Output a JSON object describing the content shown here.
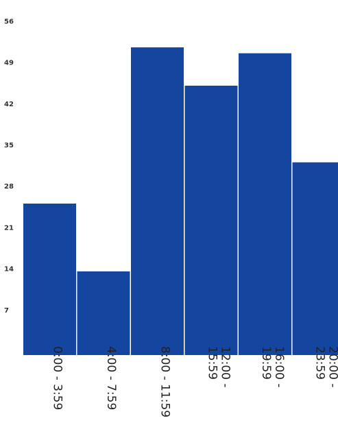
{
  "chart_data": {
    "type": "bar",
    "categories": [
      "0:00 - 3:59",
      "4:00 - 7:59",
      "8:00 - 11:59",
      "12:00 - 15:59",
      "16:00 - 19:59",
      "20:00 - 23:59"
    ],
    "x_label_lines": [
      [
        "0:00 - 3:59"
      ],
      [
        "4:00 - 7:59"
      ],
      [
        "8:00 - 11:59"
      ],
      [
        "12:00 -",
        "15:59"
      ],
      [
        "16:00 -",
        "19:59"
      ],
      [
        "20:00 -",
        "23:59"
      ]
    ],
    "values": [
      25,
      13.5,
      51.5,
      45,
      50.5,
      32
    ],
    "yticks": [
      7,
      14,
      21,
      28,
      35,
      42,
      49,
      56
    ],
    "ylim": [
      0,
      56
    ],
    "bar_color": "#1446a0",
    "grid": false,
    "legend": "none"
  }
}
